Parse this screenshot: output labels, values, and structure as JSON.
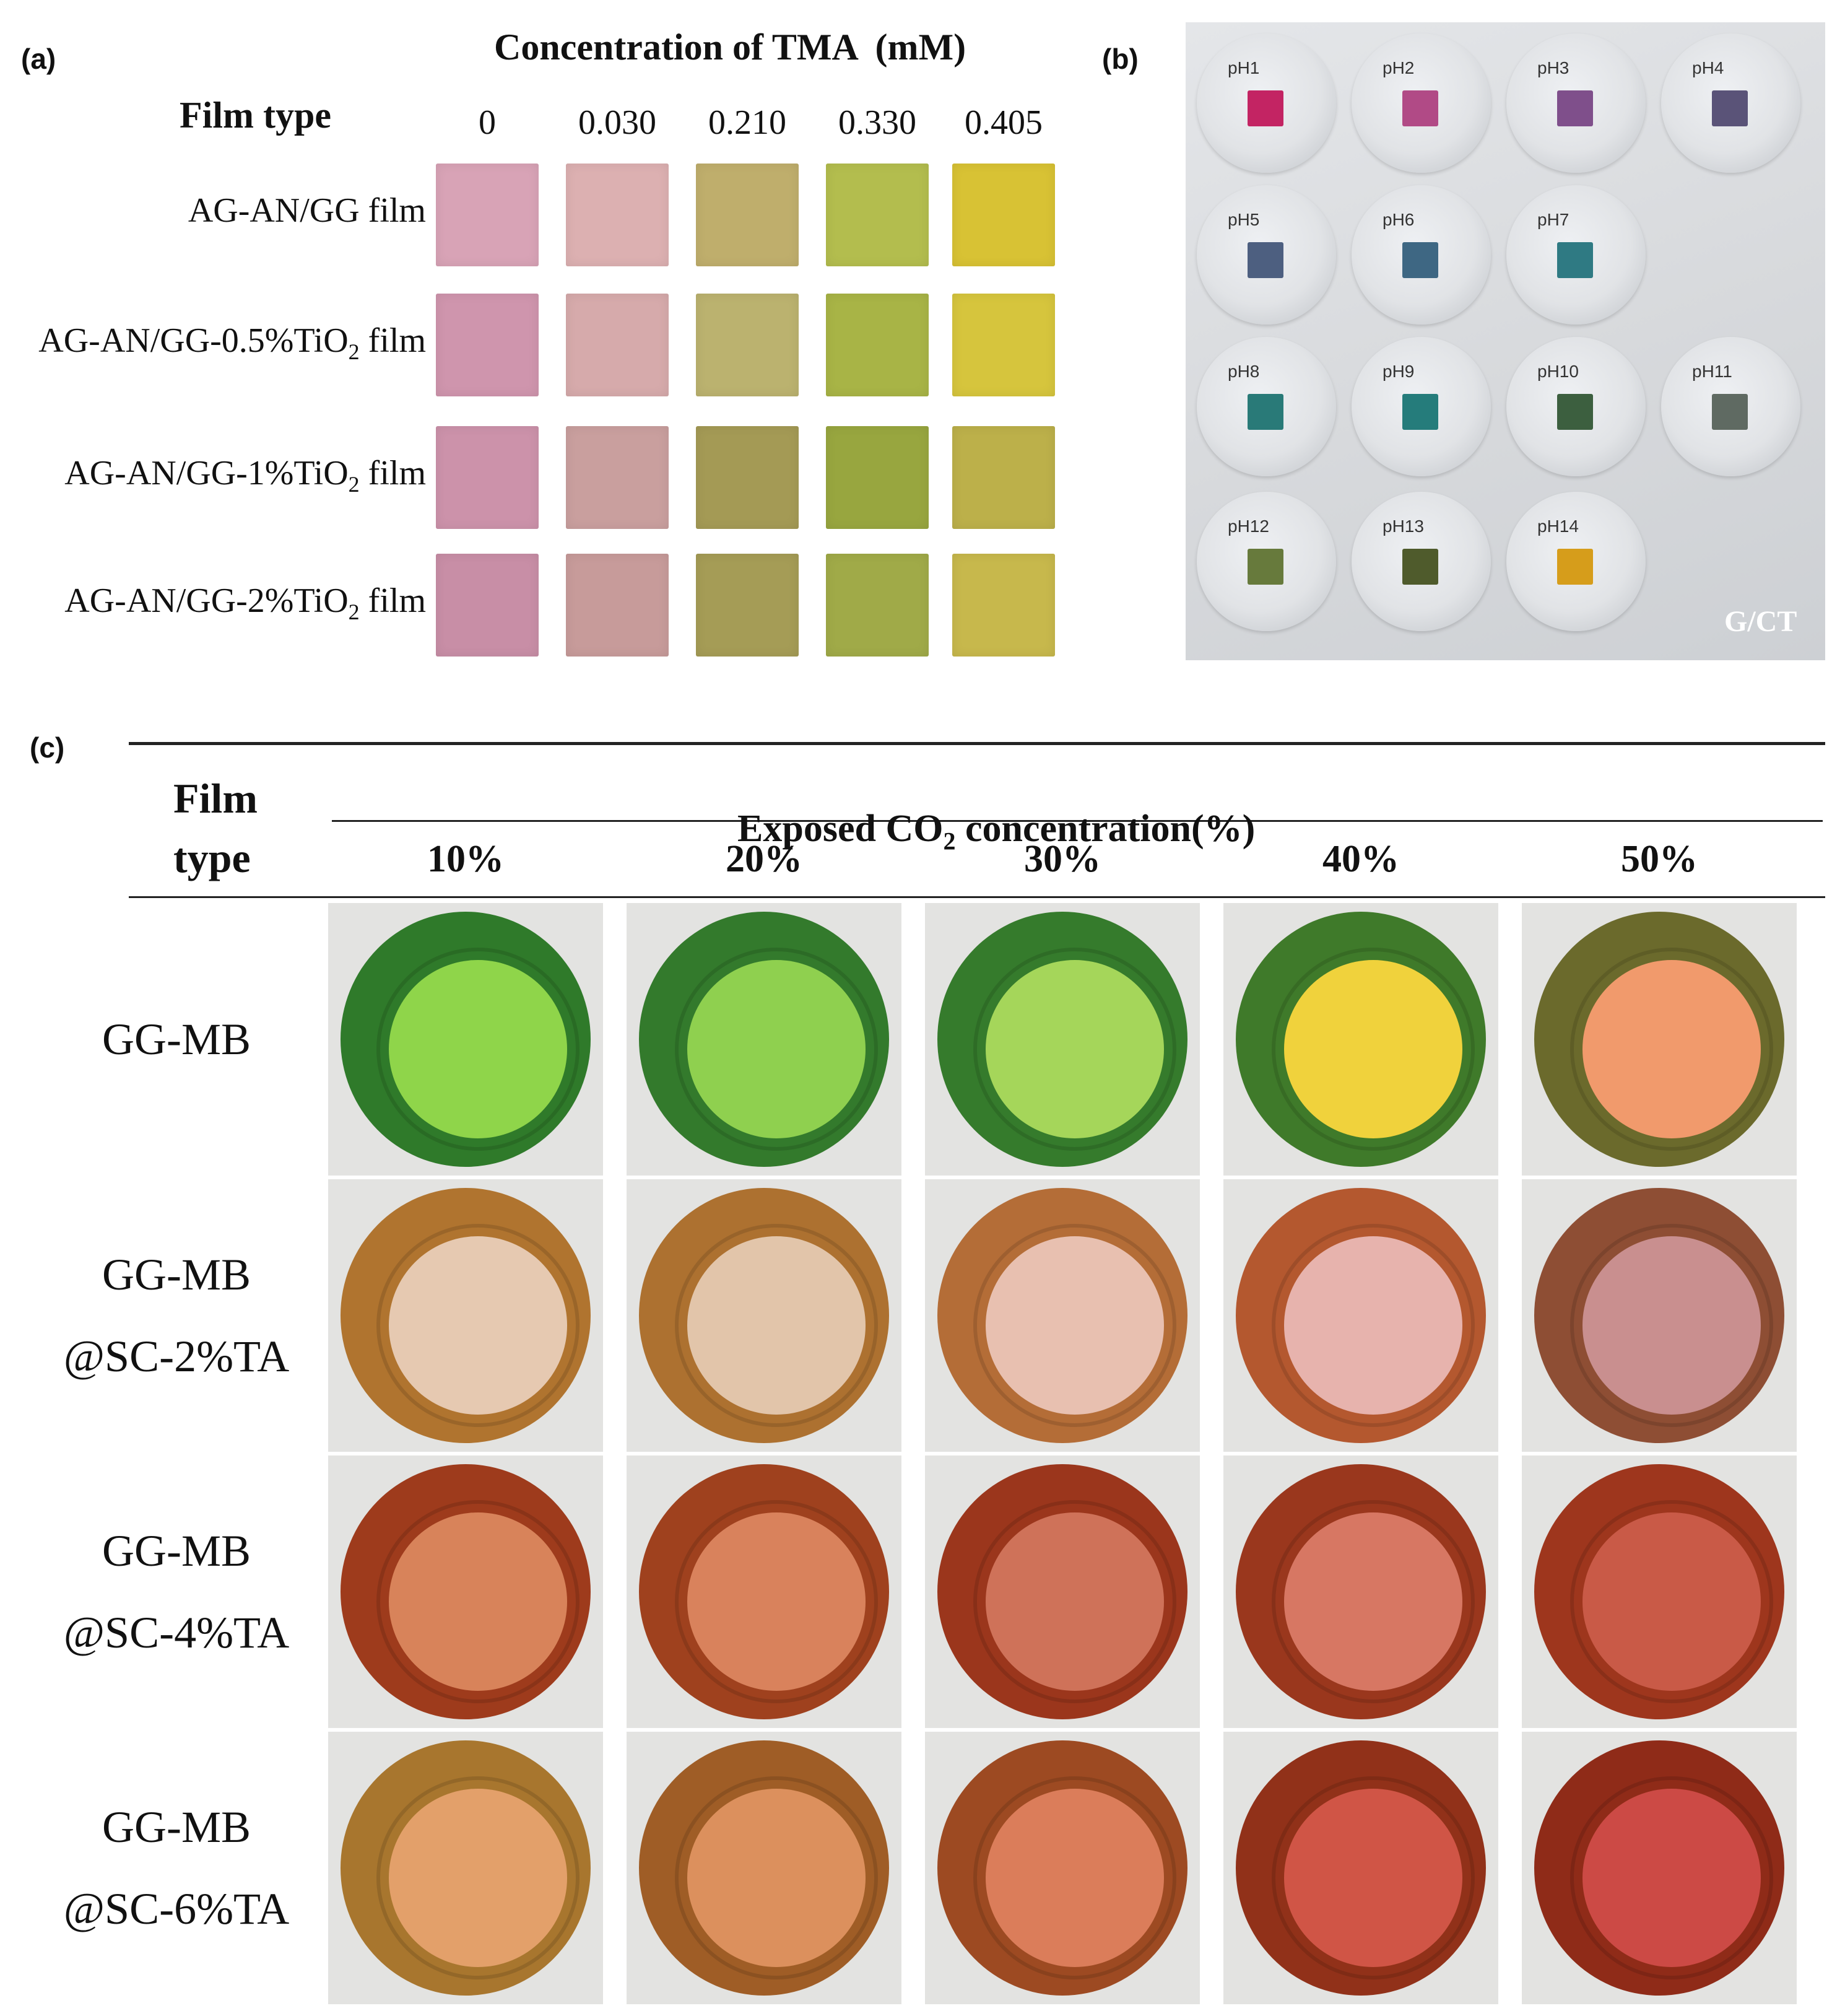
{
  "panel_a": {
    "letter": "(a)",
    "concentration_header": "Concentration of TMA  (mM)",
    "film_type_header": "Film type",
    "concentrations": [
      "0",
      "0.030",
      "0.210",
      "0.330",
      "0.405"
    ],
    "rows": [
      {
        "name": "AG-AN/GG film",
        "colors": [
          "#d8a3b6",
          "#dcb0b1",
          "#bfae6c",
          "#b3bd4e",
          "#d8c234"
        ]
      },
      {
        "name_prefix": "AG-AN/GG-0.5%TiO",
        "subscript": "2",
        "name_suffix": " film",
        "colors": [
          "#cf95ad",
          "#d6aaab",
          "#bbb26f",
          "#a8b446",
          "#d6c53d"
        ]
      },
      {
        "name_prefix": "AG-AN/GG-1%TiO",
        "subscript": "2",
        "name_suffix": " film",
        "colors": [
          "#cc92aa",
          "#c99f9e",
          "#a49a55",
          "#98a63f",
          "#bcb04a"
        ]
      },
      {
        "name_prefix": "AG-AN/GG-2%TiO",
        "subscript": "2",
        "name_suffix": " film",
        "colors": [
          "#c88ea6",
          "#c79b9a",
          "#a59c56",
          "#a0aa48",
          "#c7b84c"
        ]
      }
    ]
  },
  "panel_b": {
    "letter": "(b)",
    "corner_label": "G/CT",
    "dishes": [
      {
        "label": "pH1",
        "color": "#c32463"
      },
      {
        "label": "pH2",
        "color": "#b14a86"
      },
      {
        "label": "pH3",
        "color": "#7f4f8b"
      },
      {
        "label": "pH4",
        "color": "#5a5378"
      },
      {
        "label": "pH5",
        "color": "#4d5f80"
      },
      {
        "label": "pH6",
        "color": "#3e6783"
      },
      {
        "label": "pH7",
        "color": "#2f7a83"
      },
      {
        "label": "pH8",
        "color": "#297a78"
      },
      {
        "label": "pH9",
        "color": "#257c7b"
      },
      {
        "label": "pH10",
        "color": "#3c5f3f"
      },
      {
        "label": "pH11",
        "color": "#5f6a62"
      },
      {
        "label": "pH12",
        "color": "#677a3c"
      },
      {
        "label": "pH13",
        "color": "#4f5b2c"
      },
      {
        "label": "pH14",
        "color": "#d69d1b"
      }
    ]
  },
  "panel_c": {
    "letter": "(c)",
    "film_header_line1": "Film",
    "film_header_line2": "type",
    "exposed_header_prefix": "Exposed CO",
    "exposed_header_sub": "2",
    "exposed_header_suffix": " concentration(%)",
    "columns": [
      "10%",
      "20%",
      "30%",
      "40%",
      "50%"
    ],
    "rows": [
      {
        "line1": "GG-MB",
        "line2": "",
        "outer": [
          "#2f7a2a",
          "#337a2c",
          "#357b2c",
          "#3f7a2a",
          "#6b6a2c"
        ],
        "inner": [
          "#8fd54a",
          "#8fd04f",
          "#a5d65a",
          "#f0d23c",
          "#f19a6c"
        ]
      },
      {
        "line1": "GG-MB",
        "line2": "@SC-2%TA",
        "outer": [
          "#b0742f",
          "#ad7130",
          "#b46d37",
          "#b4582f",
          "#8e4e34"
        ],
        "inner": [
          "#e6c9b1",
          "#e2c5aa",
          "#e8c0b0",
          "#e7b3ad",
          "#c98f8f"
        ]
      },
      {
        "line1": "GG-MB",
        "line2": "@SC-4%TA",
        "outer": [
          "#9e3b1c",
          "#9f411e",
          "#9b361c",
          "#9a371d",
          "#9e361d"
        ],
        "inner": [
          "#d8835a",
          "#d9825c",
          "#cf7259",
          "#d77763",
          "#c95a47"
        ]
      },
      {
        "line1": "GG-MB",
        "line2": "@SC-6%TA",
        "outer": [
          "#a8762e",
          "#9f5d26",
          "#9d4a22",
          "#913119",
          "#8f2b18"
        ],
        "inner": [
          "#e3a06a",
          "#dc905d",
          "#db7d5a",
          "#d05546",
          "#cc4a45"
        ]
      }
    ]
  }
}
